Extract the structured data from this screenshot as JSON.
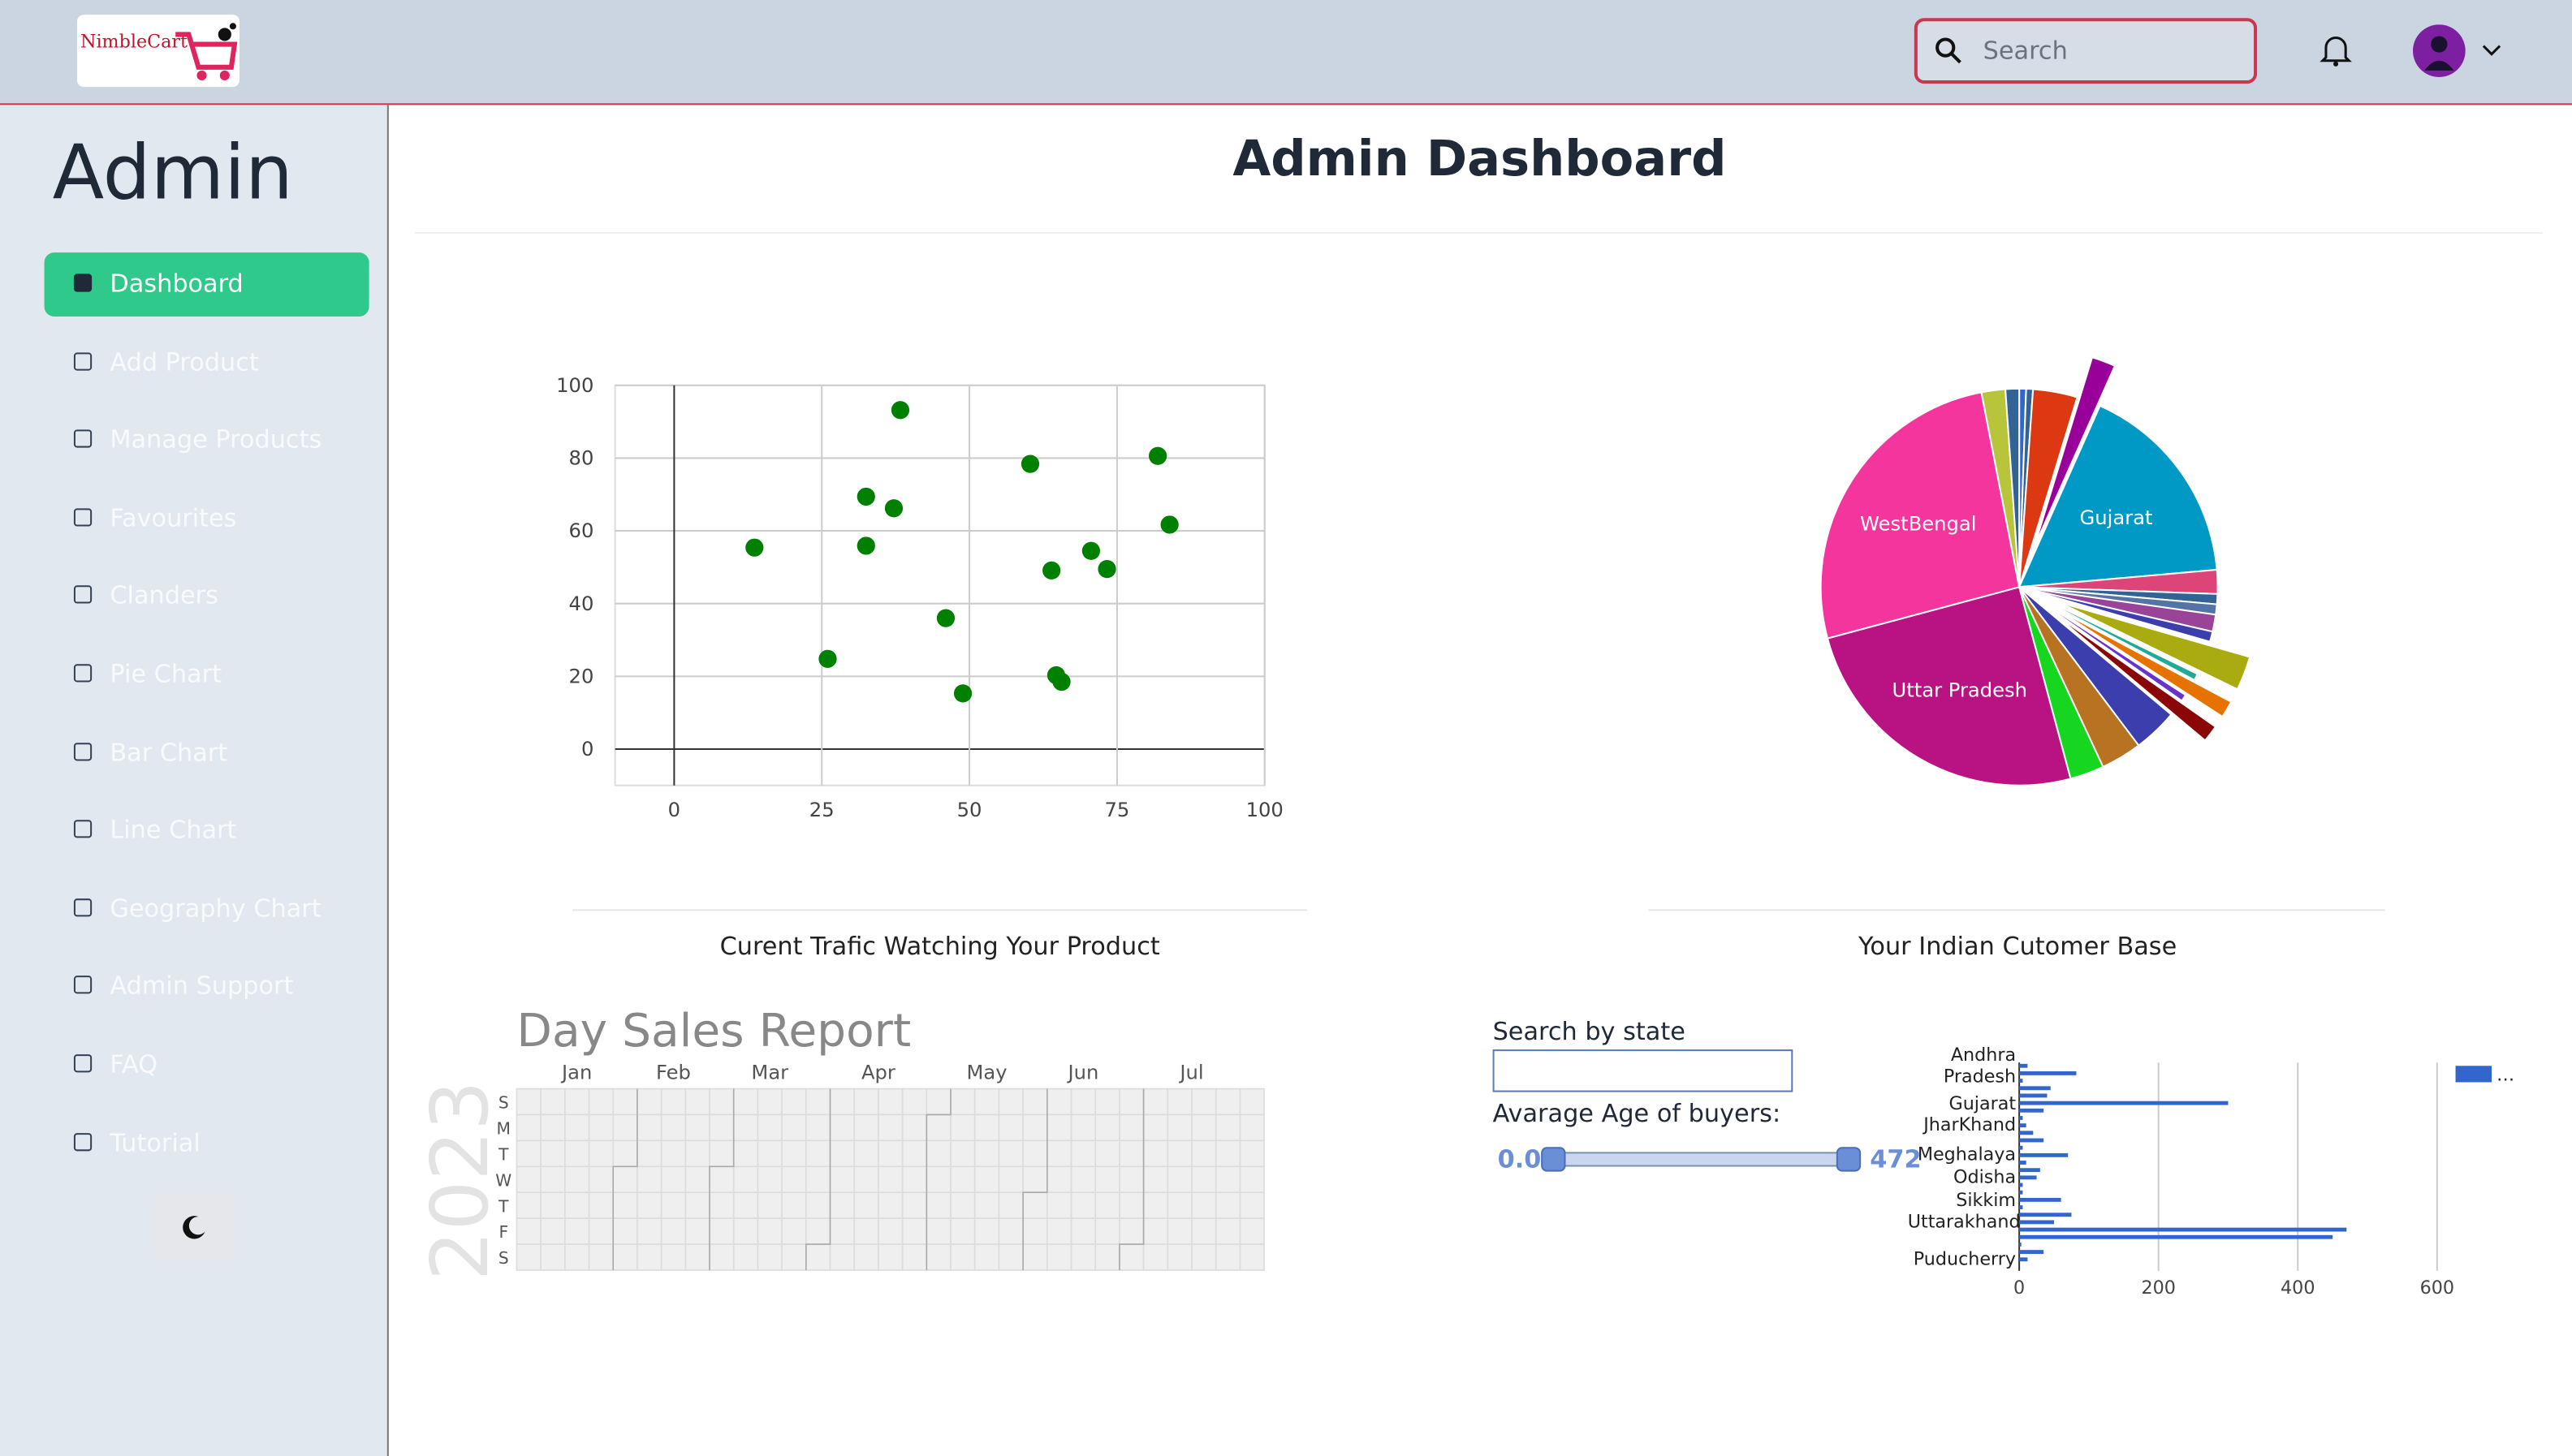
{
  "header": {
    "logo": "NimbleCart",
    "search_placeholder": "Search"
  },
  "sidebar": {
    "title": "Admin",
    "items": [
      "Dashboard",
      "Add Product",
      "Manage Products",
      "Favourites",
      "Clanders",
      "Pie Chart",
      "Bar Chart",
      "Line Chart",
      "Geography Chart",
      "Admin Support",
      "FAQ",
      "Tutorial"
    ]
  },
  "page_title": "Admin Dashboard",
  "filters": {
    "search_label": "Search by state",
    "age_label": "Avarage Age of buyers:",
    "age_min": {
      "value": 0,
      "label": "0.0"
    },
    "age_max": 472
  },
  "chart_data": [
    {
      "type": "scatter",
      "title": "Curent Trafic Watching Your Product",
      "x": [
        13.6,
        26,
        32.5,
        32.5,
        37.2,
        38.3,
        46,
        48.9,
        60.3,
        63.9,
        64.7,
        65.6,
        70.6,
        73.3,
        81.9,
        83.9
      ],
      "values": [
        55.4,
        24.8,
        69.4,
        55.9,
        66.2,
        93.2,
        36,
        15.3,
        78.4,
        49.1,
        20.3,
        18.5,
        54.5,
        49.5,
        80.6,
        61.7
      ],
      "color": "#008000",
      "xlim": [
        -10,
        100
      ],
      "ylim": [
        -10,
        100
      ],
      "xticks": [
        0,
        25,
        50,
        75,
        100
      ],
      "yticks": [
        0,
        20,
        40,
        60,
        80,
        100
      ],
      "grid": true
    },
    {
      "type": "pie",
      "title": "Your Indian Cutomer Base",
      "categories": [
        null,
        null,
        null,
        null,
        "Gujarat",
        null,
        null,
        null,
        null,
        null,
        null,
        null,
        null,
        null,
        null,
        null,
        null,
        null,
        "Uttar Pradesh",
        "WestBengal",
        null,
        null
      ],
      "values": [
        2,
        2,
        13,
        7,
        61,
        7,
        3,
        3,
        5,
        3,
        10,
        2,
        5,
        2,
        5,
        13,
        12,
        10,
        90,
        94,
        7,
        4
      ],
      "colors": [
        "#3366cc",
        "#316395",
        "#dc3912",
        "#990099",
        "#0099c6",
        "#dd4477",
        "#316395",
        "#5574a6",
        "#994499",
        "#3b3eac",
        "#aaaa11",
        "#22aa99",
        "#e67300",
        "#6633cc",
        "#8b0707",
        "#3b3eac",
        "#b77322",
        "#16d620",
        "#b91383",
        "#f4359e",
        "#b8c43a",
        "#316395"
      ],
      "exploded": [
        3,
        10,
        12,
        14
      ]
    },
    {
      "type": "calendar",
      "title": "Day Sales Report",
      "year": 2023,
      "months": [
        "Jan",
        "Feb",
        "Mar",
        "Apr",
        "May",
        "Jun",
        "Jul"
      ],
      "weekdays": [
        "S",
        "M",
        "T",
        "W",
        "T",
        "F",
        "S"
      ]
    },
    {
      "type": "bar",
      "orientation": "horizontal",
      "categories": [
        "Andhra Pradesh",
        null,
        null,
        null,
        null,
        "Gujarat",
        null,
        null,
        "JharKhand",
        null,
        null,
        null,
        "Meghalaya",
        null,
        null,
        "Odisha",
        null,
        null,
        "Sikkim",
        null,
        null,
        "Uttarakhand",
        null,
        null,
        null,
        null,
        "Puducherry"
      ],
      "series": [
        {
          "name": "…",
          "color": "#3366cc",
          "values": [
            12,
            82,
            5,
            45,
            40,
            300,
            35,
            5,
            10,
            20,
            35,
            5,
            70,
            10,
            30,
            25,
            5,
            5,
            60,
            5,
            75,
            50,
            470,
            450,
            3,
            35,
            12
          ]
        }
      ],
      "xlim": [
        0,
        610
      ],
      "xticks": [
        0,
        200,
        400,
        600
      ],
      "grid": true,
      "legend": "right"
    }
  ]
}
